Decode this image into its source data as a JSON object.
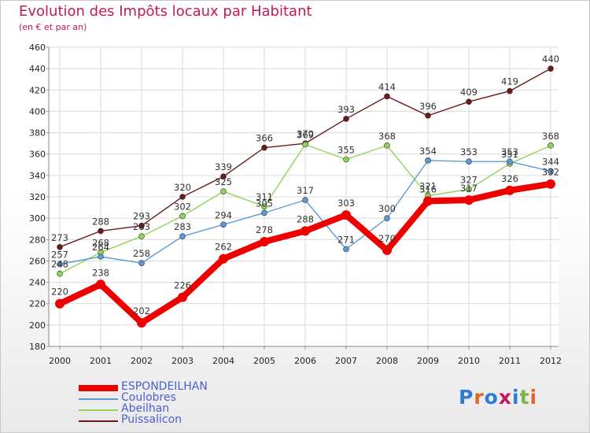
{
  "header": {
    "title": "Evolution des Impôts locaux par Habitant",
    "subtitle": "(en € et par an)"
  },
  "logo": {
    "text": "Proxiti",
    "letter_colors": [
      "#2f7bd6",
      "#e0662b",
      "#2f7bd6",
      "#c2185b",
      "#2f7bd6",
      "#7cb342",
      "#e0662b"
    ]
  },
  "chart_data": {
    "type": "line",
    "title": "Evolution des Impôts locaux par Habitant",
    "subtitle": "(en € et par an)",
    "xlabel": "",
    "ylabel": "",
    "x": [
      "2000",
      "2001",
      "2002",
      "2003",
      "2004",
      "2005",
      "2006",
      "2007",
      "2008",
      "2009",
      "2010",
      "2011",
      "2012"
    ],
    "ylim": [
      180,
      460
    ],
    "yticks": [
      180,
      200,
      220,
      240,
      260,
      280,
      300,
      320,
      340,
      360,
      380,
      400,
      420,
      440,
      460
    ],
    "grid": true,
    "legend_position": "bottom-left",
    "series": [
      {
        "name": "Puissalicon",
        "color": "#6b1a1a",
        "emphasis": false,
        "values": [
          273,
          288,
          293,
          320,
          339,
          366,
          370,
          393,
          414,
          396,
          409,
          419,
          440
        ]
      },
      {
        "name": "Abeilhan",
        "color": "#8fd45a",
        "emphasis": false,
        "values": [
          248,
          268,
          283,
          302,
          325,
          311,
          369,
          355,
          368,
          321,
          327,
          351,
          368
        ]
      },
      {
        "name": "Coulobres",
        "color": "#5b9bd5",
        "emphasis": false,
        "values": [
          257,
          264,
          258,
          283,
          294,
          305,
          317,
          271,
          300,
          354,
          353,
          353,
          344
        ]
      },
      {
        "name": "ESPONDEILHAN",
        "color": "#ee0000",
        "emphasis": true,
        "values": [
          220,
          238,
          202,
          226,
          262,
          278,
          288,
          303,
          270,
          316,
          317,
          326,
          332
        ]
      }
    ]
  },
  "legend": [
    {
      "label": "ESPONDEILHAN",
      "color": "#ee0000",
      "thickness": 8
    },
    {
      "label": "Coulobres",
      "color": "#5b9bd5",
      "thickness": 2
    },
    {
      "label": "Abeilhan",
      "color": "#8fd45a",
      "thickness": 2
    },
    {
      "label": "Puissalicon",
      "color": "#6b1a1a",
      "thickness": 2
    }
  ]
}
